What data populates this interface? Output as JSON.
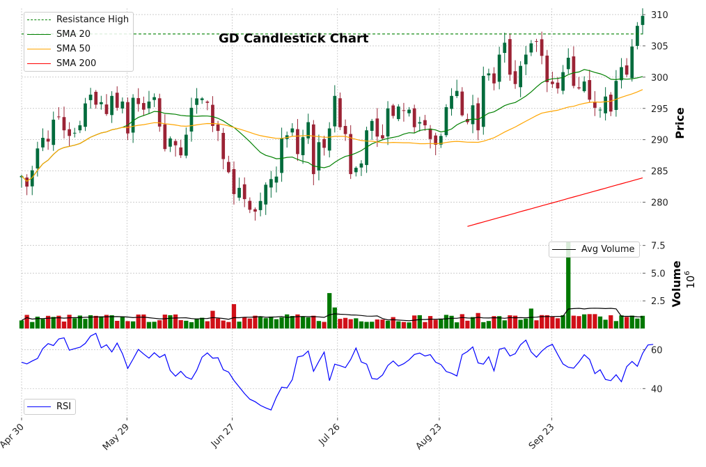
{
  "chart_data": [
    {
      "type": "candlestick",
      "title": "GD Candlestick Chart",
      "ylabel": "Price",
      "ylim": [
        274.5,
        311
      ],
      "yticks": [
        280,
        285,
        290,
        295,
        300,
        305,
        310
      ],
      "x_start": "2024-04-30",
      "x_end": "2024-10-18",
      "xtick_labels": [
        "Apr 30",
        "May 29",
        "Jun 27",
        "Jul 26",
        "Aug 23",
        "Sep 23"
      ],
      "grid": true,
      "legend_position": "upper-left",
      "legend": [
        {
          "name": "Resistance High",
          "color": "#008000",
          "style": "dashed"
        },
        {
          "name": "SMA 20",
          "color": "#008000",
          "style": "solid"
        },
        {
          "name": "SMA 50",
          "color": "#ffa500",
          "style": "solid"
        },
        {
          "name": "SMA 200",
          "color": "#ff0000",
          "style": "solid"
        }
      ],
      "resistance_high": 306.9,
      "up_color": "#006b3c",
      "down_color": "#9b2335",
      "close": [
        284.2,
        282.5,
        285.1,
        288.6,
        290.3,
        289.7,
        293.2,
        293.6,
        291.5,
        290.6,
        291.1,
        292.3,
        295.8,
        297.2,
        295.6,
        296.0,
        294.1,
        297.0,
        295.1,
        296.1,
        291.0,
        296.7,
        295.7,
        294.8,
        296.1,
        296.8,
        292.1,
        288.5,
        290.2,
        289.1,
        287.5,
        290.8,
        295.1,
        296.6,
        296.6,
        295.9,
        292.2,
        291.4,
        286.9,
        284.8,
        281.3,
        282.3,
        280.5,
        278.8,
        278.5,
        280.2,
        282.8,
        283.7,
        284.1,
        290.2,
        290.7,
        291.8,
        287.7,
        290.4,
        292.8,
        284.5,
        289.6,
        288.7,
        291.8,
        297.0,
        292.0,
        290.9,
        284.5,
        285.5,
        286.2,
        291.5,
        293.0,
        290.5,
        290.2,
        295.0,
        293.8,
        295.3,
        294.6,
        294.8,
        292.0,
        292.8,
        292.3,
        290.1,
        289.2,
        290.6,
        295.2,
        297.0,
        297.8,
        293.9,
        292.8,
        295.5,
        291.5,
        300.2,
        300.6,
        299.0,
        303.6,
        305.5,
        300.4,
        298.9,
        301.8,
        303.6,
        305.4,
        305.7,
        303.4,
        299.2,
        298.9,
        298.2,
        300.8,
        303.1,
        298.6,
        298.2,
        299.3,
        296.4,
        295.1,
        294.8,
        296.9,
        294.5,
        299.4,
        301.6,
        300.4,
        304.9,
        308.2,
        309.8
      ],
      "volume_ylabel": "Volume",
      "volume_exponent": "6",
      "volume_yticks": [
        2.5,
        5.0,
        7.5
      ],
      "volume_ylim": [
        0,
        8.3
      ],
      "volume_legend": "Avg Volume",
      "volume_legend_color": "#000000",
      "rsi_yticks": [
        40,
        60
      ],
      "rsi_ylim": [
        25,
        71
      ],
      "rsi_legend": "RSI",
      "rsi_color": "#0000ff",
      "rsi": [
        53.6,
        52.7,
        54.2,
        55.5,
        60.6,
        63.2,
        62.2,
        65.6,
        66.2,
        59.8,
        60.6,
        61.3,
        63.3,
        67.1,
        68.5,
        61.0,
        62.6,
        58.9,
        63.5,
        58.0,
        50.4,
        55.2,
        60.2,
        57.8,
        55.7,
        58.5,
        56.1,
        57.6,
        49.3,
        46.4,
        48.9,
        45.9,
        44.8,
        49.4,
        56.2,
        58.4,
        55.7,
        55.9,
        49.7,
        48.5,
        44.2,
        40.8,
        37.4,
        34.5,
        33.2,
        31.3,
        30.0,
        28.9,
        35.5,
        40.7,
        40.3,
        44.6,
        56.3,
        56.9,
        59.4,
        48.9,
        54.0,
        58.8,
        44.1,
        52.6,
        51.8,
        50.8,
        55.0,
        60.9,
        53.7,
        52.6,
        45.2,
        44.8,
        47.0,
        51.9,
        54.2,
        51.6,
        52.8,
        54.8,
        57.6,
        58.3,
        56.8,
        57.5,
        53.6,
        52.4,
        48.8,
        47.9,
        46.5,
        57.5,
        59.1,
        61.5,
        53.2,
        52.6,
        56.4,
        49.1,
        60.3,
        61.0,
        56.8,
        58.0,
        62.6,
        65.0,
        58.9,
        56.2,
        59.3,
        61.6,
        62.8,
        57.6,
        52.7,
        51.0,
        50.5,
        53.7,
        57.5,
        55.0,
        47.7,
        49.7,
        44.7,
        44.1,
        47.1,
        43.5,
        51.3,
        54.0,
        51.5,
        58.2,
        62.5,
        62.8
      ]
    }
  ]
}
